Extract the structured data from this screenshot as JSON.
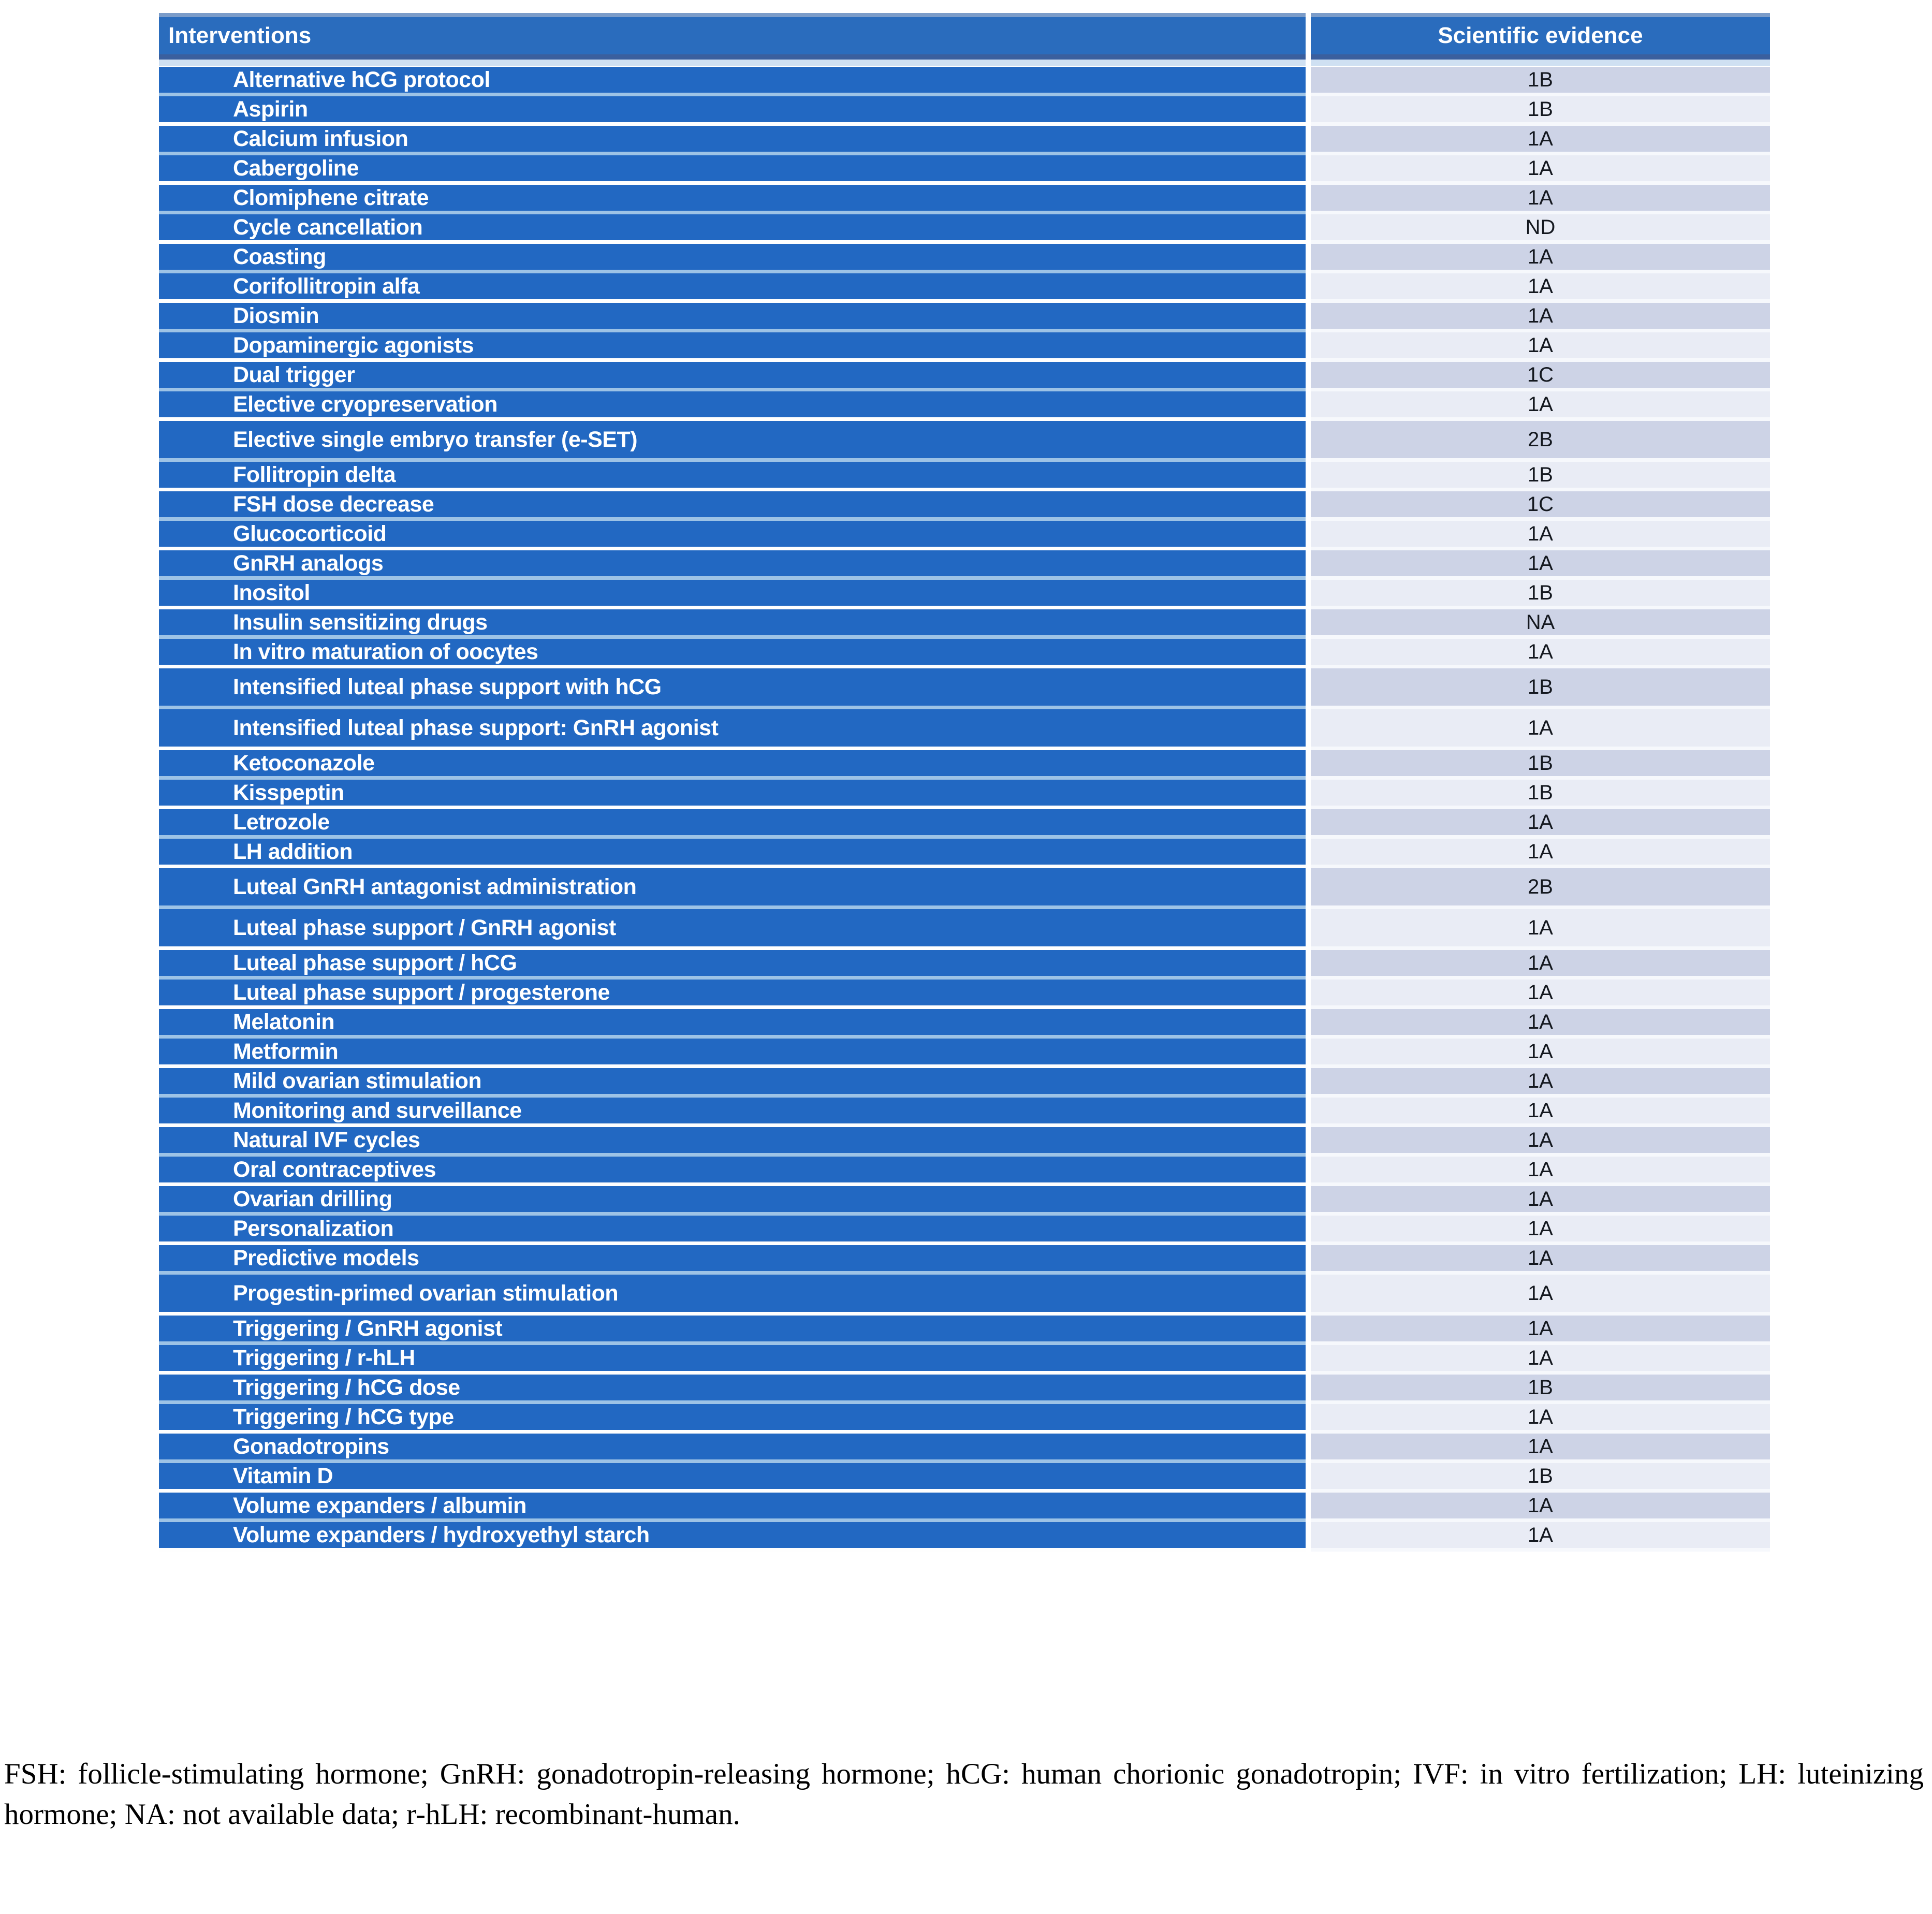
{
  "table": {
    "header": {
      "interventions": "Interventions",
      "evidence": "Scientific evidence"
    },
    "rows": [
      {
        "label": "Alternative hCG protocol",
        "evidence": "1B",
        "tall": false
      },
      {
        "label": "Aspirin",
        "evidence": "1B",
        "tall": false
      },
      {
        "label": "Calcium infusion",
        "evidence": "1A",
        "tall": false
      },
      {
        "label": "Cabergoline",
        "evidence": "1A",
        "tall": false
      },
      {
        "label": "Clomiphene citrate",
        "evidence": "1A",
        "tall": false
      },
      {
        "label": "Cycle cancellation",
        "evidence": "ND",
        "tall": false
      },
      {
        "label": "Coasting",
        "evidence": "1A",
        "tall": false
      },
      {
        "label": "Corifollitropin alfa",
        "evidence": "1A",
        "tall": false
      },
      {
        "label": "Diosmin",
        "evidence": "1A",
        "tall": false
      },
      {
        "label": "Dopaminergic agonists",
        "evidence": "1A",
        "tall": false
      },
      {
        "label": "Dual trigger",
        "evidence": "1C",
        "tall": false
      },
      {
        "label": "Elective cryopreservation",
        "evidence": "1A",
        "tall": false
      },
      {
        "label": "Elective single embryo transfer (e-SET)",
        "evidence": "2B",
        "tall": true
      },
      {
        "label": "Follitropin delta",
        "evidence": "1B",
        "tall": false
      },
      {
        "label": "FSH dose decrease",
        "evidence": "1C",
        "tall": false
      },
      {
        "label": "Glucocorticoid",
        "evidence": "1A",
        "tall": false
      },
      {
        "label": "GnRH analogs",
        "evidence": "1A",
        "tall": false
      },
      {
        "label": "Inositol",
        "evidence": "1B",
        "tall": false
      },
      {
        "label": "Insulin sensitizing drugs",
        "evidence": "NA",
        "tall": false
      },
      {
        "label": "In vitro maturation of oocytes",
        "evidence": "1A",
        "tall": false
      },
      {
        "label": "Intensified luteal phase support with hCG",
        "evidence": "1B",
        "tall": true
      },
      {
        "label": "Intensified luteal phase support: GnRH agonist",
        "evidence": "1A",
        "tall": true
      },
      {
        "label": "Ketoconazole",
        "evidence": "1B",
        "tall": false
      },
      {
        "label": "Kisspeptin",
        "evidence": "1B",
        "tall": false
      },
      {
        "label": "Letrozole",
        "evidence": "1A",
        "tall": false
      },
      {
        "label": "LH addition",
        "evidence": "1A",
        "tall": false
      },
      {
        "label": "Luteal GnRH antagonist administration",
        "evidence": "2B",
        "tall": true
      },
      {
        "label": "Luteal phase support / GnRH agonist",
        "evidence": "1A",
        "tall": true
      },
      {
        "label": "Luteal phase support / hCG",
        "evidence": "1A",
        "tall": false
      },
      {
        "label": "Luteal phase support / progesterone",
        "evidence": "1A",
        "tall": false
      },
      {
        "label": "Melatonin",
        "evidence": "1A",
        "tall": false
      },
      {
        "label": "Metformin",
        "evidence": "1A",
        "tall": false
      },
      {
        "label": "Mild ovarian stimulation",
        "evidence": "1A",
        "tall": false
      },
      {
        "label": "Monitoring and surveillance",
        "evidence": "1A",
        "tall": false
      },
      {
        "label": "Natural IVF cycles",
        "evidence": "1A",
        "tall": false
      },
      {
        "label": "Oral contraceptives",
        "evidence": "1A",
        "tall": false
      },
      {
        "label": "Ovarian drilling",
        "evidence": "1A",
        "tall": false
      },
      {
        "label": "Personalization",
        "evidence": "1A",
        "tall": false
      },
      {
        "label": "Predictive models",
        "evidence": "1A",
        "tall": false
      },
      {
        "label": "Progestin-primed ovarian stimulation",
        "evidence": "1A",
        "tall": true
      },
      {
        "label": "Triggering / GnRH agonist",
        "evidence": "1A",
        "tall": false
      },
      {
        "label": "Triggering / r-hLH",
        "evidence": "1A",
        "tall": false
      },
      {
        "label": "Triggering / hCG dose",
        "evidence": "1B",
        "tall": false
      },
      {
        "label": "Triggering / hCG type",
        "evidence": "1A",
        "tall": false
      },
      {
        "label": "Gonadotropins",
        "evidence": "1A",
        "tall": false
      },
      {
        "label": "Vitamin D",
        "evidence": "1B",
        "tall": false
      },
      {
        "label": "Volume expanders / albumin",
        "evidence": "1A",
        "tall": false
      },
      {
        "label": "Volume expanders / hydroxyethyl starch",
        "evidence": "1A",
        "tall": false
      }
    ]
  },
  "footnote": "FSH: follicle-stimulating hormone; GnRH: gonadotropin-releasing hormone; hCG: human chorionic gonadotropin; IVF: in vitro fertilization; LH: luteinizing hormone; NA: not available data; r-hLH: recombinant-human.",
  "colors": {
    "row_blue": "#2268c2",
    "header_blue": "#2a6cbd",
    "evidence_dark_bg": "#cdd3e6",
    "evidence_light_bg": "#e9ecf5",
    "separator_light_blue": "#9dc3e6",
    "row_text": "#ffffff",
    "evidence_text": "#14181f"
  }
}
